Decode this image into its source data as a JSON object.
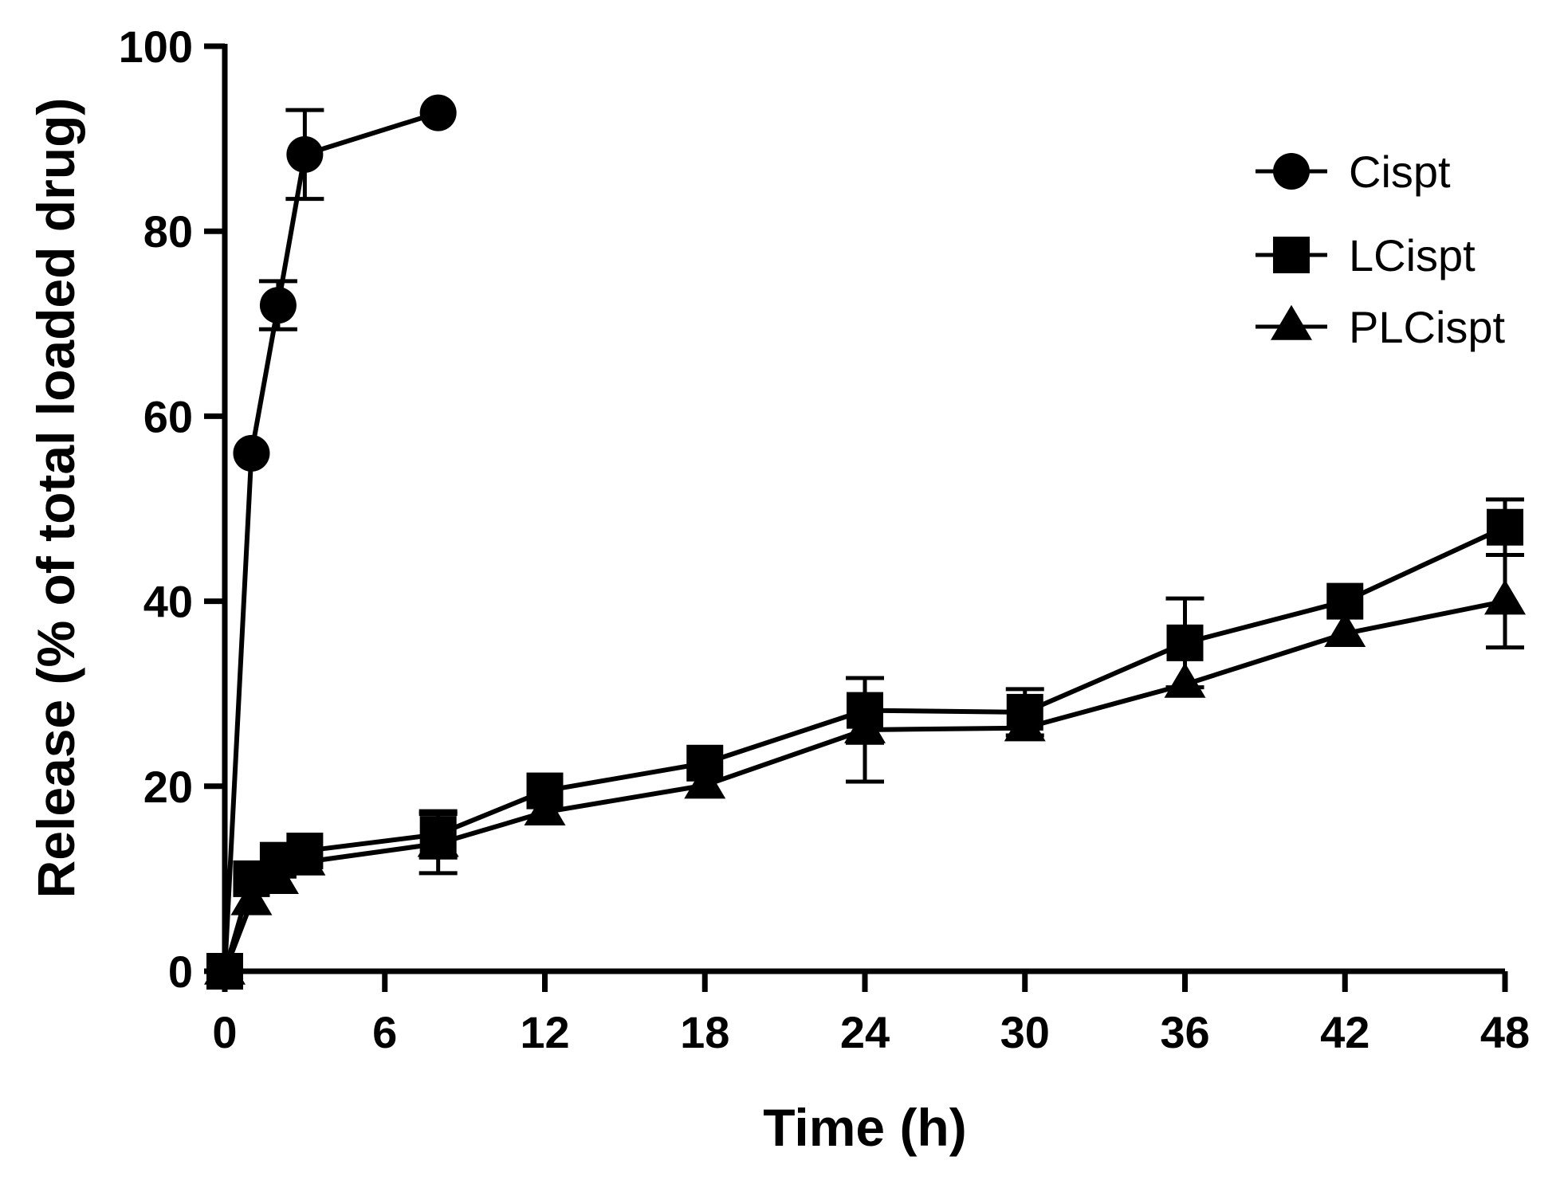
{
  "chart_data": {
    "type": "line",
    "title": "",
    "xlabel": "Time (h)",
    "ylabel": "Release (% of total loaded drug)",
    "xlim": [
      0,
      48
    ],
    "ylim": [
      0,
      100
    ],
    "xticks": [
      0,
      6,
      12,
      18,
      24,
      30,
      36,
      42,
      48
    ],
    "yticks": [
      0,
      20,
      40,
      60,
      80,
      100
    ],
    "x_tick_labels": [
      "0",
      "6",
      "12",
      "18",
      "24",
      "30",
      "36",
      "42",
      "48"
    ],
    "y_tick_labels": [
      "0",
      "20",
      "40",
      "60",
      "80",
      "100"
    ],
    "grid": false,
    "legend_position": "top-right",
    "series": [
      {
        "name": "Cispt",
        "marker": "circle",
        "x": [
          0,
          1,
          2,
          3,
          8
        ],
        "y": [
          0,
          56,
          72,
          88.3,
          92.8
        ],
        "err": [
          0,
          0,
          2.6,
          4.8,
          0
        ]
      },
      {
        "name": "LCispt",
        "marker": "square",
        "x": [
          0,
          1,
          2,
          3,
          8,
          12,
          18,
          24,
          30,
          36,
          42,
          48
        ],
        "y": [
          0,
          10,
          12,
          13,
          14.8,
          19.5,
          22.5,
          28.2,
          28,
          35.5,
          40,
          48
        ],
        "err": [
          0,
          0,
          0,
          0,
          2.5,
          0,
          0,
          3.5,
          2.5,
          4.8,
          0,
          3
        ]
      },
      {
        "name": "PLCispt",
        "marker": "triangle",
        "x": [
          0,
          1,
          2,
          3,
          8,
          12,
          18,
          24,
          30,
          36,
          42,
          48
        ],
        "y": [
          0,
          7.5,
          9.8,
          11.8,
          13.8,
          17.2,
          20.1,
          26.1,
          26.3,
          31,
          36.5,
          40
        ],
        "err": [
          0,
          0,
          0,
          0,
          3.2,
          0,
          0,
          5.6,
          0,
          0,
          0,
          5
        ]
      }
    ]
  }
}
